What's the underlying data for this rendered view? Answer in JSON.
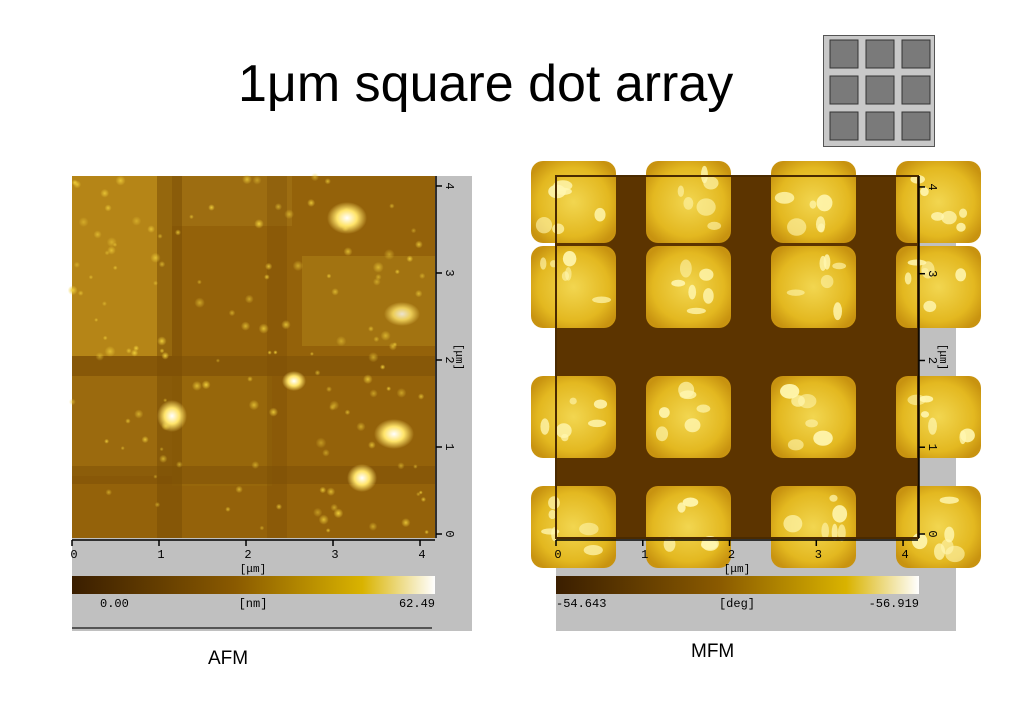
{
  "title": "1μm square dot array",
  "diagram_icon": {
    "name": "dot-array-icon",
    "rows": 3,
    "cols": 3,
    "colors": {
      "frame": "#c8c8c8",
      "dot": "#7a7a7a",
      "border": "#555555"
    }
  },
  "panels": [
    {
      "id": "afm",
      "caption": "AFM",
      "x_ticks": [
        "0",
        "1",
        "2",
        "3",
        "4"
      ],
      "y_ticks": [
        "0",
        "1",
        "2",
        "3",
        "4"
      ],
      "x_unit": "[μm]",
      "y_unit": "[μm]",
      "scale_min": "0.00",
      "scale_unit": "[nm]",
      "scale_max": "62.49"
    },
    {
      "id": "mfm",
      "caption": "MFM",
      "x_ticks": [
        "0",
        "1",
        "2",
        "3",
        "4"
      ],
      "y_ticks": [
        "0",
        "1",
        "2",
        "3",
        "4"
      ],
      "x_unit": "[μm]",
      "y_unit": "[μm]",
      "scale_min": "-54.643",
      "scale_unit": "[deg]",
      "scale_max": "-56.919"
    }
  ],
  "colors": {
    "panel_bg": "#c0c0c0",
    "dark": "#4a2c00",
    "mid": "#a66e00",
    "bright": "#e8c000",
    "white": "#ffffff"
  }
}
